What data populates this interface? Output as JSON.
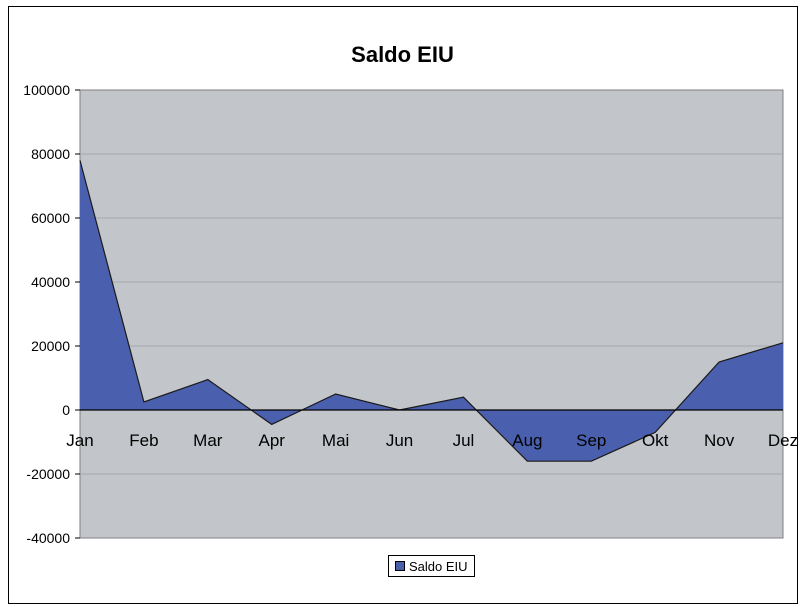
{
  "chart_data": {
    "type": "area",
    "title": "Saldo EIU",
    "categories": [
      "Jan",
      "Feb",
      "Mar",
      "Apr",
      "Mai",
      "Jun",
      "Jul",
      "Aug",
      "Sep",
      "Okt",
      "Nov",
      "Dez"
    ],
    "series": [
      {
        "name": "Saldo EIU",
        "values": [
          78000,
          2500,
          9500,
          -4500,
          5000,
          0,
          4000,
          -16000,
          -16000,
          -7000,
          15000,
          21000
        ]
      }
    ],
    "yticks": [
      "100000",
      "80000",
      "60000",
      "40000",
      "20000",
      "0",
      "-20000",
      "-40000"
    ],
    "ylim": [
      -40000,
      100000
    ],
    "grid": true,
    "legend_position": "bottom",
    "colors": {
      "series_fill": "#4a5fad",
      "series_stroke": "#1a1a1a",
      "plot_background": "#c2c5c9",
      "gridline": "#9a9da1"
    }
  }
}
